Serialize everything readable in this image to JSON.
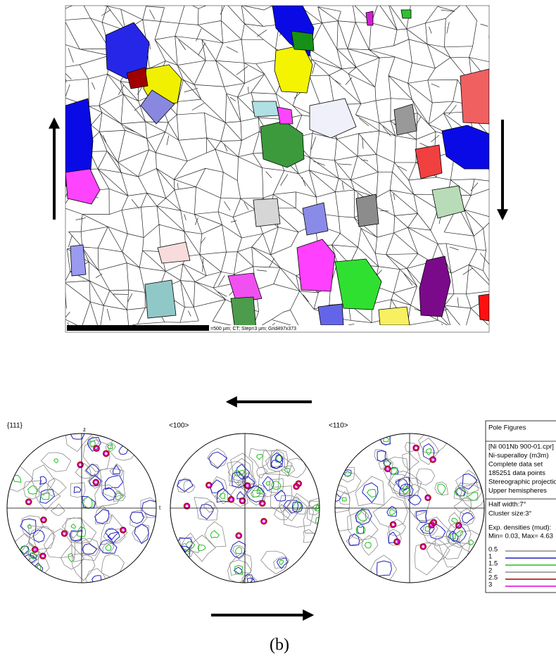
{
  "map": {
    "scale_text": "=500 µm; CT; Step=3 µm; Grid497x373"
  },
  "pole_figures": [
    {
      "label": "{111}",
      "axis_top": "z",
      "axis_right": "t"
    },
    {
      "label": "<100>"
    },
    {
      "label": "<110>"
    }
  ],
  "legend": {
    "title": "Pole Figures",
    "info": [
      "[Ni 001Nb 900-01.cpr]",
      "Ni-superalloy (m3m)",
      "Complete data set",
      "185251 data points",
      "Stereographic projection",
      "Upper hemispheres"
    ],
    "settings": [
      "Half width:7°",
      "Cluster size:3°"
    ],
    "densities": [
      "Exp. densities (mud):",
      "Min= 0.03, Max= 4.63"
    ],
    "levels": [
      {
        "label": "0.5",
        "color": "#8a8a8a"
      },
      {
        "label": "1",
        "color": "#2020c0"
      },
      {
        "label": "1.5",
        "color": "#20c020"
      },
      {
        "label": "2",
        "color": "#8a8a8a"
      },
      {
        "label": "2.5",
        "color": "#a00000"
      },
      {
        "label": "3",
        "color": "#e000e0"
      }
    ]
  },
  "caption": "(b)"
}
